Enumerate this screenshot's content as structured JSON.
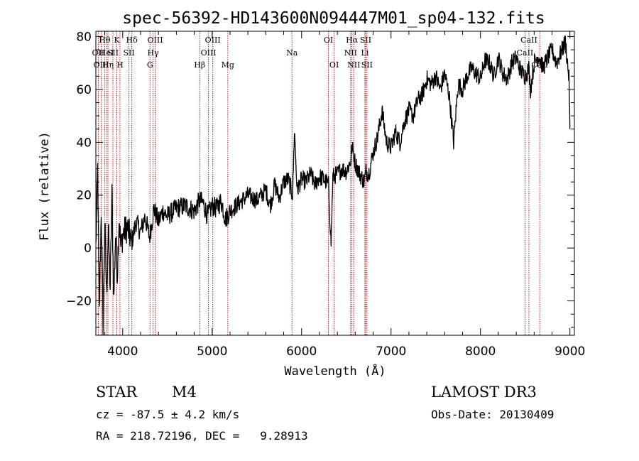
{
  "chart_data": {
    "type": "line",
    "title": "spec-56392-HD143600N094447M01_sp04-132.fits",
    "xlabel": "Wavelength (Å)",
    "ylabel": "Flux (relative)",
    "xlim": [
      3700,
      9050
    ],
    "ylim": [
      -33,
      82
    ],
    "xticks": [
      4000,
      5000,
      6000,
      7000,
      8000,
      9000
    ],
    "yticks": [
      -20,
      0,
      20,
      40,
      60,
      80
    ],
    "series": [
      {
        "name": "spectrum",
        "x": [
          3700,
          3720,
          3740,
          3760,
          3780,
          3800,
          3820,
          3840,
          3860,
          3880,
          3900,
          3920,
          3940,
          3960,
          3980,
          4000,
          4050,
          4100,
          4150,
          4200,
          4250,
          4300,
          4350,
          4400,
          4450,
          4500,
          4600,
          4700,
          4800,
          4860,
          4900,
          4950,
          5000,
          5050,
          5100,
          5150,
          5200,
          5300,
          5400,
          5500,
          5600,
          5650,
          5700,
          5750,
          5800,
          5850,
          5900,
          5920,
          5950,
          6000,
          6050,
          6100,
          6150,
          6200,
          6250,
          6300,
          6330,
          6350,
          6400,
          6450,
          6500,
          6550,
          6563,
          6580,
          6600,
          6650,
          6700,
          6720,
          6750,
          6800,
          6850,
          6900,
          6950,
          7000,
          7050,
          7100,
          7150,
          7200,
          7250,
          7300,
          7350,
          7400,
          7450,
          7500,
          7550,
          7600,
          7650,
          7700,
          7750,
          7800,
          7850,
          7900,
          7950,
          8000,
          8050,
          8100,
          8150,
          8200,
          8250,
          8300,
          8350,
          8400,
          8450,
          8500,
          8540,
          8560,
          8600,
          8650,
          8700,
          8750,
          8800,
          8850,
          8900,
          8950,
          8990,
          9000
        ],
        "y": [
          0,
          30,
          -25,
          15,
          -30,
          10,
          -18,
          8,
          -15,
          20,
          -20,
          5,
          -10,
          12,
          0,
          5,
          8,
          2,
          10,
          6,
          12,
          4,
          15,
          10,
          14,
          12,
          15,
          16,
          14,
          18,
          17,
          12,
          16,
          15,
          18,
          11,
          14,
          17,
          20,
          18,
          22,
          16,
          24,
          19,
          25,
          26,
          20,
          45,
          22,
          26,
          25,
          28,
          24,
          27,
          26,
          24,
          2,
          27,
          28,
          30,
          29,
          33,
          38,
          36,
          32,
          28,
          25,
          29,
          28,
          36,
          42,
          52,
          40,
          38,
          44,
          40,
          48,
          52,
          50,
          56,
          58,
          64,
          62,
          65,
          60,
          66,
          58,
          40,
          62,
          60,
          65,
          68,
          66,
          64,
          71,
          70,
          65,
          72,
          66,
          64,
          70,
          72,
          67,
          65,
          68,
          60,
          70,
          73,
          68,
          72,
          75,
          70,
          74,
          78,
          64,
          45
        ]
      }
    ],
    "emission_lines": [
      {
        "label": "Hθ",
        "x": 3798,
        "row": 0
      },
      {
        "label": "OII",
        "x": 3727,
        "row": 1
      },
      {
        "label": "OIII",
        "x": 3760,
        "row": 2
      },
      {
        "label": "HeI",
        "x": 3820,
        "row": 1
      },
      {
        "label": "Hη",
        "x": 3835,
        "row": 2
      },
      {
        "label": "K",
        "x": 3934,
        "row": 0
      },
      {
        "label": "SII",
        "x": 3890,
        "row": 1
      },
      {
        "label": "H",
        "x": 3970,
        "row": 2
      },
      {
        "label": "Hδ",
        "x": 4102,
        "row": 0
      },
      {
        "label": "SII",
        "x": 4070,
        "row": 1
      },
      {
        "label": "OIII",
        "x": 4363,
        "row": 0
      },
      {
        "label": "Hγ",
        "x": 4340,
        "row": 1
      },
      {
        "label": "G",
        "x": 4305,
        "row": 2
      },
      {
        "label": "Hβ",
        "x": 4861,
        "row": 2
      },
      {
        "label": "OIII",
        "x": 5007,
        "row": 0
      },
      {
        "label": "OIII",
        "x": 4959,
        "row": 1
      },
      {
        "label": "Mg",
        "x": 5175,
        "row": 2
      },
      {
        "label": "Na",
        "x": 5893,
        "row": 1
      },
      {
        "label": "OI",
        "x": 6300,
        "row": 0
      },
      {
        "label": "OI",
        "x": 6364,
        "row": 2
      },
      {
        "label": "Hα",
        "x": 6563,
        "row": 0
      },
      {
        "label": "SII",
        "x": 6716,
        "row": 0
      },
      {
        "label": "NII",
        "x": 6548,
        "row": 1
      },
      {
        "label": "Li",
        "x": 6708,
        "row": 1
      },
      {
        "label": "NII",
        "x": 6584,
        "row": 2
      },
      {
        "label": "SII",
        "x": 6731,
        "row": 2
      },
      {
        "label": "CaII",
        "x": 8542,
        "row": 0
      },
      {
        "label": "CaII",
        "x": 8498,
        "row": 1
      },
      {
        "label": "CaII",
        "x": 8662,
        "row": 2
      }
    ]
  },
  "info": {
    "object_class": "STAR",
    "subclass": "M4",
    "survey": "LAMOST DR3",
    "cz": "cz = -87.5 ± 4.2 km/s",
    "obs_date": "Obs-Date: 20130409",
    "coords": "RA = 218.72196, DEC =   9.28913"
  }
}
